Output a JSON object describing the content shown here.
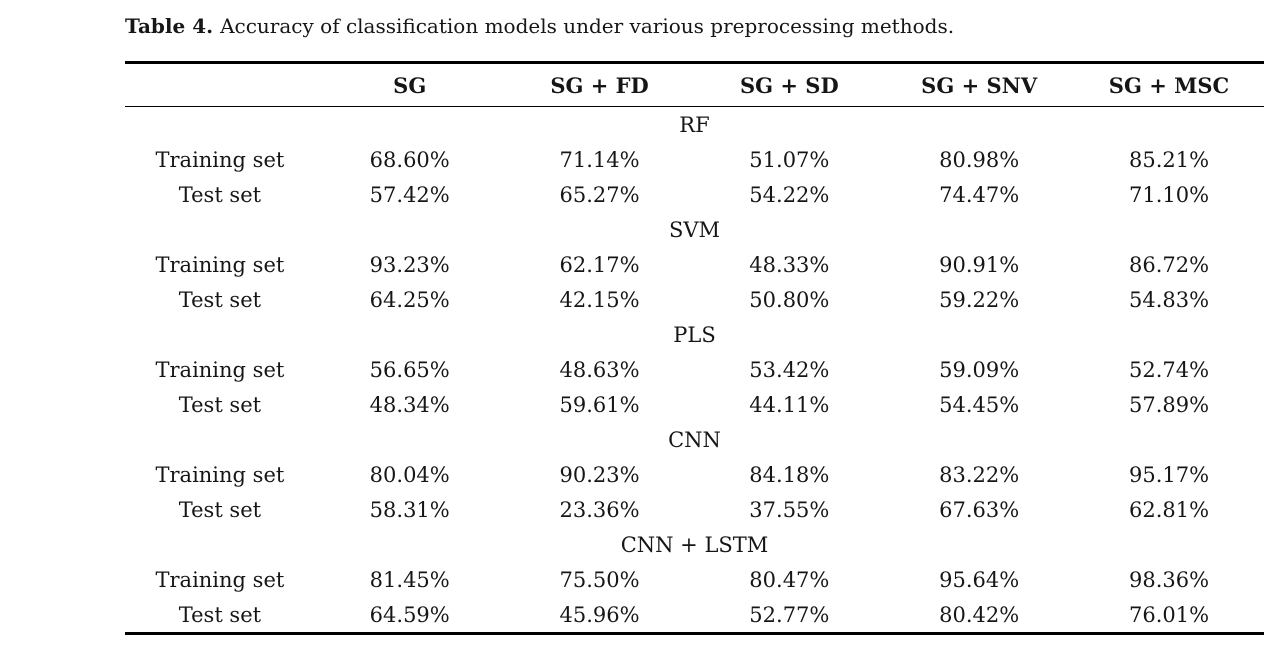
{
  "caption": {
    "label": "Table 4.",
    "text": "Accuracy of classification models under various preprocessing methods."
  },
  "table": {
    "columns": [
      "",
      "SG",
      "SG + FD",
      "SG + SD",
      "SG + SNV",
      "SG + MSC"
    ],
    "sections": [
      {
        "model": "RF",
        "rows": [
          {
            "label": "Training set",
            "values": [
              "68.60%",
              "71.14%",
              "51.07%",
              "80.98%",
              "85.21%"
            ]
          },
          {
            "label": "Test set",
            "values": [
              "57.42%",
              "65.27%",
              "54.22%",
              "74.47%",
              "71.10%"
            ]
          }
        ]
      },
      {
        "model": "SVM",
        "rows": [
          {
            "label": "Training set",
            "values": [
              "93.23%",
              "62.17%",
              "48.33%",
              "90.91%",
              "86.72%"
            ]
          },
          {
            "label": "Test set",
            "values": [
              "64.25%",
              "42.15%",
              "50.80%",
              "59.22%",
              "54.83%"
            ]
          }
        ]
      },
      {
        "model": "PLS",
        "rows": [
          {
            "label": "Training set",
            "values": [
              "56.65%",
              "48.63%",
              "53.42%",
              "59.09%",
              "52.74%"
            ]
          },
          {
            "label": "Test set",
            "values": [
              "48.34%",
              "59.61%",
              "44.11%",
              "54.45%",
              "57.89%"
            ]
          }
        ]
      },
      {
        "model": "CNN",
        "rows": [
          {
            "label": "Training set",
            "values": [
              "80.04%",
              "90.23%",
              "84.18%",
              "83.22%",
              "95.17%"
            ]
          },
          {
            "label": "Test set",
            "values": [
              "58.31%",
              "23.36%",
              "37.55%",
              "67.63%",
              "62.81%"
            ]
          }
        ]
      },
      {
        "model": "CNN + LSTM",
        "rows": [
          {
            "label": "Training set",
            "values": [
              "81.45%",
              "75.50%",
              "80.47%",
              "95.64%",
              "98.36%"
            ]
          },
          {
            "label": "Test set",
            "values": [
              "64.59%",
              "45.96%",
              "52.77%",
              "80.42%",
              "76.01%"
            ]
          }
        ]
      }
    ]
  }
}
